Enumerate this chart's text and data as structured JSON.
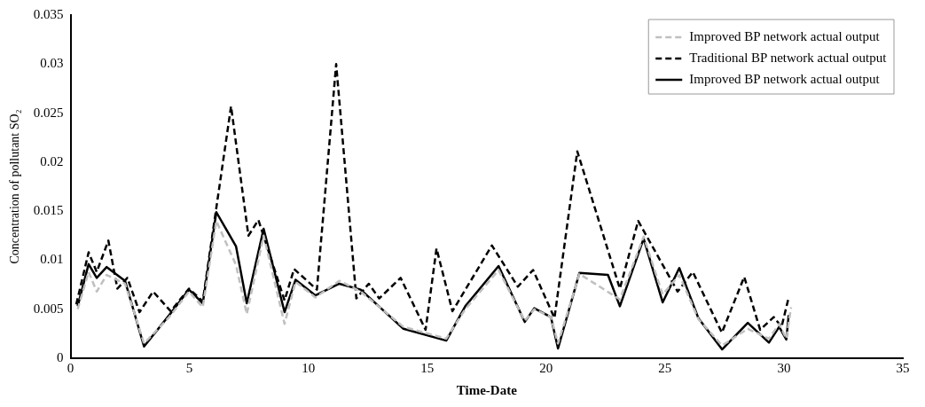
{
  "chart_data": {
    "type": "line",
    "xlabel": "Time-Date",
    "ylabel": "Concentration of pollutant SO₂",
    "xlim": [
      0,
      35
    ],
    "xticks": [
      0,
      5,
      10,
      15,
      20,
      25,
      30,
      35
    ],
    "ylim": [
      0,
      0.035
    ],
    "yticks": [
      0,
      0.005,
      0.01,
      0.015,
      0.02,
      0.025,
      0.03,
      0.035
    ],
    "grid": false,
    "legend": "top right",
    "marker": "none",
    "series": [
      {
        "name": "Improved BP network actual output",
        "color": "#bfbfbf",
        "line_style": "dashed",
        "x": [
          0.3,
          0.76,
          1.1,
          1.52,
          2.29,
          3.09,
          4.15,
          4.98,
          5.56,
          6.13,
          6.96,
          7.41,
          8.12,
          9.0,
          9.46,
          10.3,
          11.3,
          12.2,
          14.0,
          15.8,
          16.6,
          18.0,
          19.1,
          19.5,
          20.2,
          20.5,
          21.4,
          23.1,
          24.1,
          24.9,
          25.6,
          26.4,
          27.4,
          28.48,
          29.37,
          29.8,
          30.1,
          30.3
        ],
        "values": [
          0.005,
          0.0088,
          0.0068,
          0.0085,
          0.0076,
          0.0015,
          0.0042,
          0.0068,
          0.0052,
          0.014,
          0.0095,
          0.0045,
          0.0125,
          0.0035,
          0.0078,
          0.0062,
          0.0079,
          0.0068,
          0.0032,
          0.002,
          0.005,
          0.009,
          0.0038,
          0.005,
          0.0042,
          0.0015,
          0.0086,
          0.006,
          0.0124,
          0.0065,
          0.0085,
          0.004,
          0.0013,
          0.003,
          0.002,
          0.0035,
          0.002,
          0.0052
        ]
      },
      {
        "name": "Traditional BP network actual output",
        "color": "#000000",
        "line_style": "dashed",
        "x": [
          0.24,
          0.76,
          1.1,
          1.59,
          1.97,
          2.39,
          2.9,
          3.47,
          4.21,
          4.98,
          5.56,
          6.75,
          7.48,
          7.9,
          9.0,
          9.4,
          10.36,
          11.17,
          12.02,
          12.54,
          12.98,
          13.88,
          14.93,
          15.39,
          16.06,
          17.72,
          18.81,
          19.45,
          20.35,
          21.31,
          23.1,
          23.87,
          25.53,
          26.17,
          27.39,
          28.33,
          29.0,
          29.57,
          29.9,
          30.2
        ],
        "values": [
          0.0055,
          0.0108,
          0.0088,
          0.012,
          0.0071,
          0.0082,
          0.0047,
          0.0068,
          0.0048,
          0.0071,
          0.0058,
          0.0257,
          0.0125,
          0.0141,
          0.0059,
          0.0091,
          0.007,
          0.03,
          0.0061,
          0.0076,
          0.0061,
          0.0082,
          0.0029,
          0.0112,
          0.0048,
          0.0115,
          0.0073,
          0.009,
          0.0041,
          0.0211,
          0.0071,
          0.014,
          0.0068,
          0.0088,
          0.0026,
          0.0083,
          0.0029,
          0.0042,
          0.0032,
          0.0062
        ]
      },
      {
        "name": "Improved BP network actual output",
        "color": "#000000",
        "line_style": "solid",
        "x": [
          0.3,
          0.76,
          1.1,
          1.52,
          2.29,
          3.09,
          4.15,
          4.98,
          5.56,
          6.13,
          6.96,
          7.41,
          8.12,
          9.0,
          9.46,
          10.3,
          11.3,
          12.2,
          14.0,
          15.8,
          16.6,
          18.0,
          19.1,
          19.5,
          20.2,
          20.5,
          21.4,
          22.6,
          23.1,
          24.1,
          24.9,
          25.6,
          26.4,
          27.4,
          28.48,
          29.37,
          29.8,
          30.1,
          30.2
        ],
        "values": [
          0.0053,
          0.0096,
          0.0082,
          0.0093,
          0.0079,
          0.0012,
          0.0044,
          0.007,
          0.0056,
          0.0149,
          0.0114,
          0.0056,
          0.0132,
          0.0047,
          0.008,
          0.0064,
          0.0076,
          0.007,
          0.003,
          0.0018,
          0.0053,
          0.0094,
          0.0037,
          0.0051,
          0.0042,
          0.001,
          0.0087,
          0.0085,
          0.0053,
          0.0122,
          0.0057,
          0.0092,
          0.0041,
          0.0009,
          0.0036,
          0.0016,
          0.0032,
          0.0019,
          0.0044
        ]
      }
    ]
  }
}
